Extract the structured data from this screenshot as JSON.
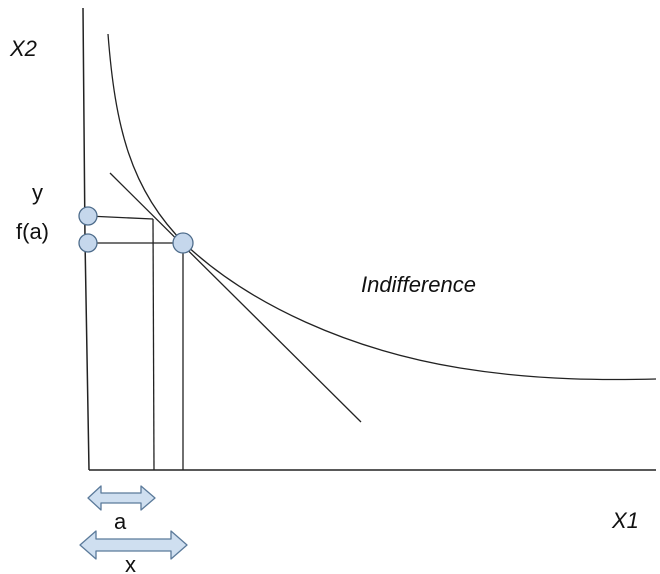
{
  "labels": {
    "y_axis": "X2",
    "x_axis": "X1",
    "curve": "Indifference",
    "y_value": "y",
    "f_value": "f(a)",
    "a_span": "a",
    "x_span": "x"
  },
  "colors": {
    "marker_fill": "#c5d7ec",
    "marker_stroke": "#4f6d8c",
    "arrow_fill": "#cfdff0",
    "arrow_stroke": "#5b7a9a",
    "line": "#222222"
  },
  "icons": {
    "span_arrow": "double-headed-arrow-icon",
    "point_marker": "circle-marker-icon"
  }
}
